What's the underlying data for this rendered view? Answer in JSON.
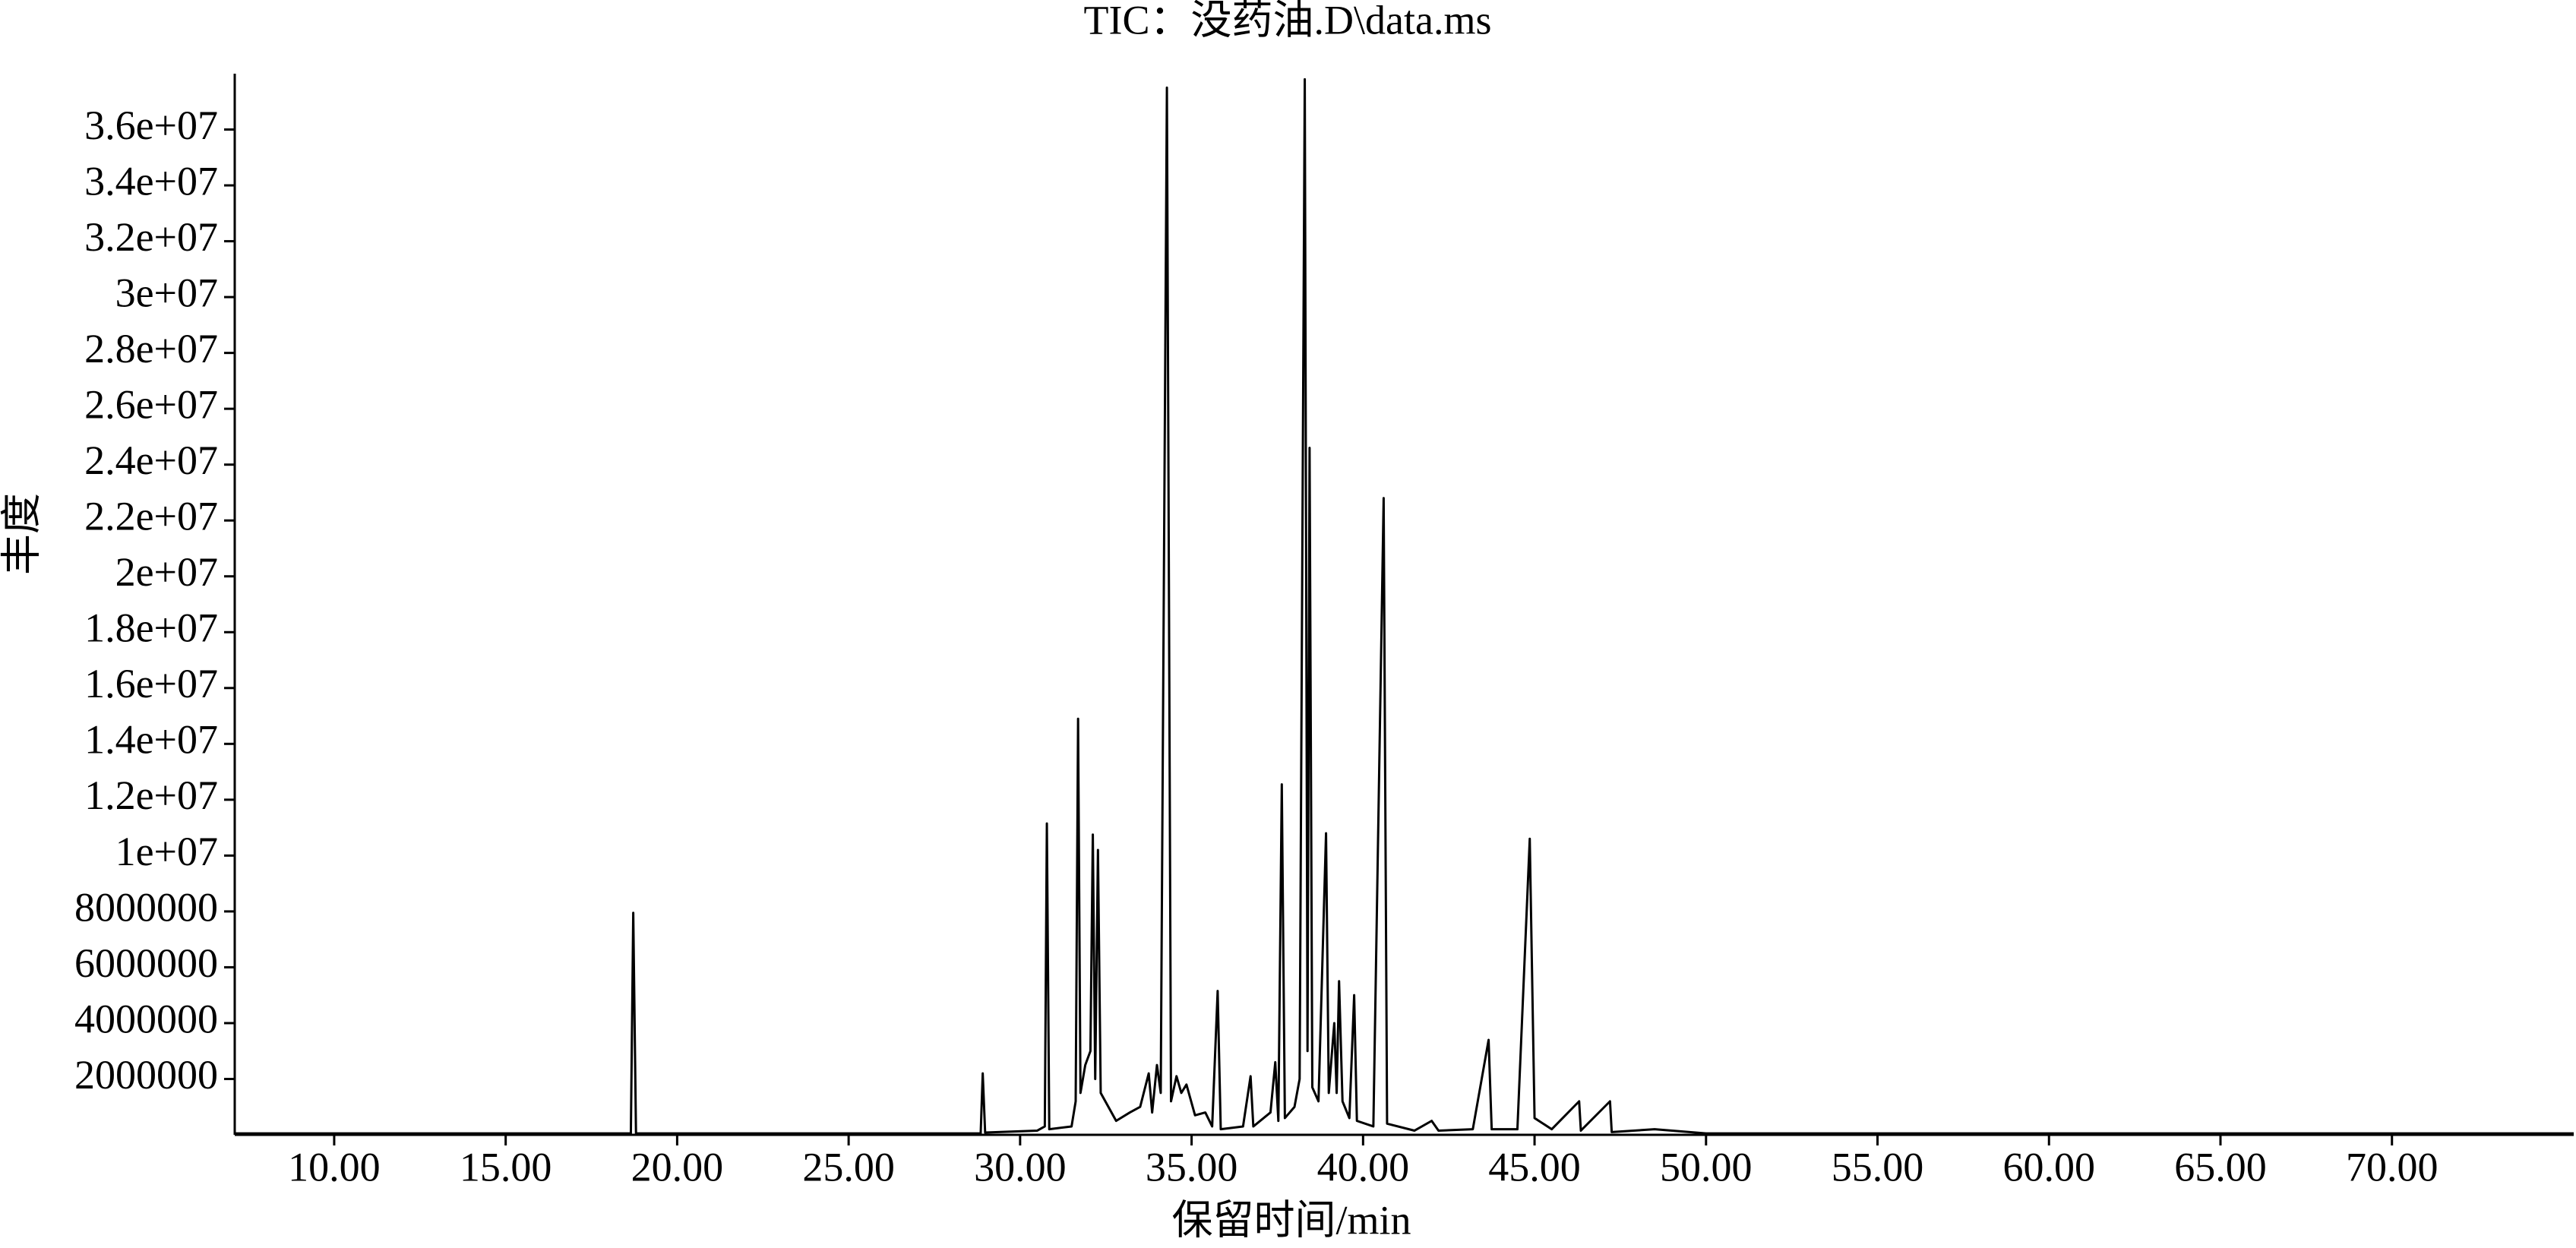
{
  "chart_data": {
    "type": "line",
    "title": "TIC：没药油.D\\data.ms",
    "x_label": "保留时间/min",
    "y_label": "丰度",
    "color": "#000000",
    "x": [
      7.1,
      18.65,
      18.72,
      18.8,
      28.85,
      28.91,
      28.98,
      30.5,
      30.72,
      30.78,
      30.85,
      31.5,
      31.62,
      31.69,
      31.76,
      31.9,
      32.05,
      32.12,
      32.19,
      32.27,
      32.35,
      32.8,
      33.2,
      33.5,
      33.75,
      33.85,
      33.99,
      34.1,
      34.28,
      34.4,
      34.56,
      34.7,
      34.85,
      35.1,
      35.4,
      35.6,
      35.76,
      35.85,
      36.5,
      36.72,
      36.8,
      37.3,
      37.44,
      37.53,
      37.63,
      37.72,
      38.0,
      38.15,
      38.3,
      38.38,
      38.44,
      38.52,
      38.7,
      38.92,
      39.0,
      39.16,
      39.23,
      39.3,
      39.4,
      39.6,
      39.74,
      39.82,
      40.3,
      40.6,
      40.7,
      41.5,
      42.0,
      42.2,
      43.2,
      43.66,
      43.75,
      44.5,
      44.86,
      45.0,
      45.5,
      46.3,
      46.35,
      47.2,
      47.25,
      48.5,
      50,
      75.3
    ],
    "values": [
      50000,
      50000,
      7950000,
      50000,
      50000,
      2200000,
      80000,
      150000,
      300000,
      11150000,
      200000,
      300000,
      1200000,
      14900000,
      1500000,
      2500000,
      3000000,
      10750000,
      2000000,
      10200000,
      1500000,
      500000,
      800000,
      1000000,
      2200000,
      800000,
      2500000,
      1500000,
      37500000,
      1200000,
      2100000,
      1500000,
      1800000,
      700000,
      800000,
      300000,
      5150000,
      200000,
      300000,
      2100000,
      300000,
      800000,
      2600000,
      500000,
      12550000,
      600000,
      1000000,
      2000000,
      37800000,
      3000000,
      24600000,
      1700000,
      1200000,
      10800000,
      1500000,
      4000000,
      1500000,
      5500000,
      1200000,
      600000,
      5000000,
      500000,
      300000,
      22800000,
      400000,
      150000,
      500000,
      150000,
      200000,
      3400000,
      200000,
      200000,
      10600000,
      600000,
      200000,
      1200000,
      150000,
      1200000,
      100000,
      200000,
      50000,
      50000
    ],
    "xlim": [
      7.1,
      75.3
    ],
    "ylim": [
      0,
      38000000
    ],
    "xticks": [
      {
        "value": 10,
        "label": "10.00"
      },
      {
        "value": 15,
        "label": "15.00"
      },
      {
        "value": 20,
        "label": "20.00"
      },
      {
        "value": 25,
        "label": "25.00"
      },
      {
        "value": 30,
        "label": "30.00"
      },
      {
        "value": 35,
        "label": "35.00"
      },
      {
        "value": 40,
        "label": "40.00"
      },
      {
        "value": 45,
        "label": "45.00"
      },
      {
        "value": 50,
        "label": "50.00"
      },
      {
        "value": 55,
        "label": "55.00"
      },
      {
        "value": 60,
        "label": "60.00"
      },
      {
        "value": 65,
        "label": "65.00"
      },
      {
        "value": 70,
        "label": "70.00"
      }
    ],
    "yticks": [
      2000000,
      4000000,
      6000000,
      8000000,
      {
        "value": 10000000,
        "label": "1e+07"
      },
      {
        "value": 12000000,
        "label": "1.2e+07"
      },
      {
        "value": 14000000,
        "label": "1.4e+07"
      },
      {
        "value": 16000000,
        "label": "1.6e+07"
      },
      {
        "value": 18000000,
        "label": "1.8e+07"
      },
      {
        "value": 20000000,
        "label": "2e+07"
      },
      {
        "value": 22000000,
        "label": "2.2e+07"
      },
      {
        "value": 24000000,
        "label": "2.4e+07"
      },
      {
        "value": 26000000,
        "label": "2.6e+07"
      },
      {
        "value": 28000000,
        "label": "2.8e+07"
      },
      {
        "value": 30000000,
        "label": "3e+07"
      },
      {
        "value": 32000000,
        "label": "3.2e+07"
      },
      {
        "value": 34000000,
        "label": "3.4e+07"
      },
      {
        "value": 36000000,
        "label": "3.6e+07"
      }
    ]
  }
}
